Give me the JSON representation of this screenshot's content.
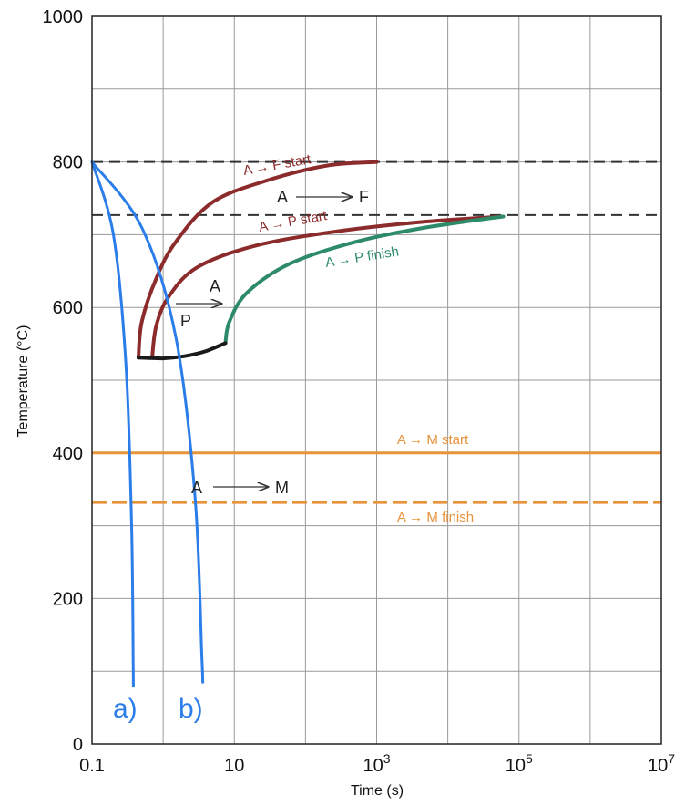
{
  "chart_data": {
    "type": "line",
    "xlabel": "Time (s)",
    "ylabel": "Temperature (°C)",
    "xscale": "log",
    "xlim": [
      0.1,
      10000000
    ],
    "ylim": [
      0,
      1000
    ],
    "grid": true,
    "x_ticks": [
      {
        "value": 0.1,
        "base": "0.1",
        "exp": ""
      },
      {
        "value": 10,
        "base": "10",
        "exp": ""
      },
      {
        "value": 1000,
        "base": "10",
        "exp": "3"
      },
      {
        "value": 100000,
        "base": "10",
        "exp": "5"
      },
      {
        "value": 10000000,
        "base": "10",
        "exp": "7"
      }
    ],
    "y_ticks": [
      {
        "value": 0,
        "label": "0"
      },
      {
        "value": 200,
        "label": "200"
      },
      {
        "value": 400,
        "label": "400"
      },
      {
        "value": 600,
        "label": "600"
      },
      {
        "value": 800,
        "label": "800"
      },
      {
        "value": 1000,
        "label": "1000"
      }
    ],
    "colors": {
      "ferrite_start": "#8c2b2b",
      "pearlite_start": "#8c2b2b",
      "pearlite_finish": "#2e8b6a",
      "bainite_boundary": "#1a1a1a",
      "martensite": "#e8923a",
      "cooling": "#2b7de9",
      "reference": "#333333"
    },
    "reference_lines": [
      {
        "y": 800,
        "style": "dashed"
      },
      {
        "y": 727,
        "style": "dashed"
      }
    ],
    "martensite_lines": [
      {
        "label": "A → M start",
        "y": 400,
        "style": "solid"
      },
      {
        "label": "A → M finish",
        "y": 332,
        "style": "dashed"
      }
    ],
    "series": [
      {
        "label": "A → F start",
        "points": [
          [
            0.45,
            531
          ],
          [
            0.5,
            580
          ],
          [
            0.8,
            640
          ],
          [
            1.5,
            690
          ],
          [
            5,
            745
          ],
          [
            30,
            775
          ],
          [
            200,
            795
          ],
          [
            1000,
            800
          ]
        ]
      },
      {
        "label": "A → P start",
        "points": [
          [
            0.7,
            531
          ],
          [
            0.8,
            575
          ],
          [
            1.2,
            615
          ],
          [
            3,
            655
          ],
          [
            20,
            685
          ],
          [
            300,
            705
          ],
          [
            5000,
            718
          ],
          [
            60000,
            725
          ]
        ]
      },
      {
        "label": "A → P finish",
        "points": [
          [
            7.5,
            551
          ],
          [
            8.5,
            580
          ],
          [
            15,
            620
          ],
          [
            60,
            660
          ],
          [
            500,
            690
          ],
          [
            5000,
            710
          ],
          [
            60000,
            725
          ]
        ]
      },
      {
        "label": "",
        "points": [
          [
            0.45,
            531
          ],
          [
            1,
            530
          ],
          [
            2,
            533
          ],
          [
            4,
            540
          ],
          [
            7.5,
            551
          ]
        ]
      }
    ],
    "cooling_curves": [
      {
        "label": "a)",
        "points": [
          [
            0.1,
            800
          ],
          [
            0.2,
            700
          ],
          [
            0.3,
            520
          ],
          [
            0.36,
            300
          ],
          [
            0.38,
            100
          ],
          [
            0.38,
            85
          ]
        ]
      },
      {
        "label": "b)",
        "points": [
          [
            0.1,
            800
          ],
          [
            0.5,
            710
          ],
          [
            1.5,
            560
          ],
          [
            2.8,
            340
          ],
          [
            3.5,
            120
          ],
          [
            3.6,
            85
          ]
        ]
      }
    ],
    "annotations": {
      "a_to_f_start": "A → F start",
      "a_to_p_start": "A → P start",
      "a_to_p_finish": "A → P finish",
      "a_to_m_start": "A → M start",
      "a_to_m_finish": "A → M finish",
      "af_a": "A",
      "af_f": "F",
      "ap_a": "A",
      "ap_p": "P",
      "am_a": "A",
      "am_m": "M",
      "curve_a": "a)",
      "curve_b": "b)"
    }
  }
}
